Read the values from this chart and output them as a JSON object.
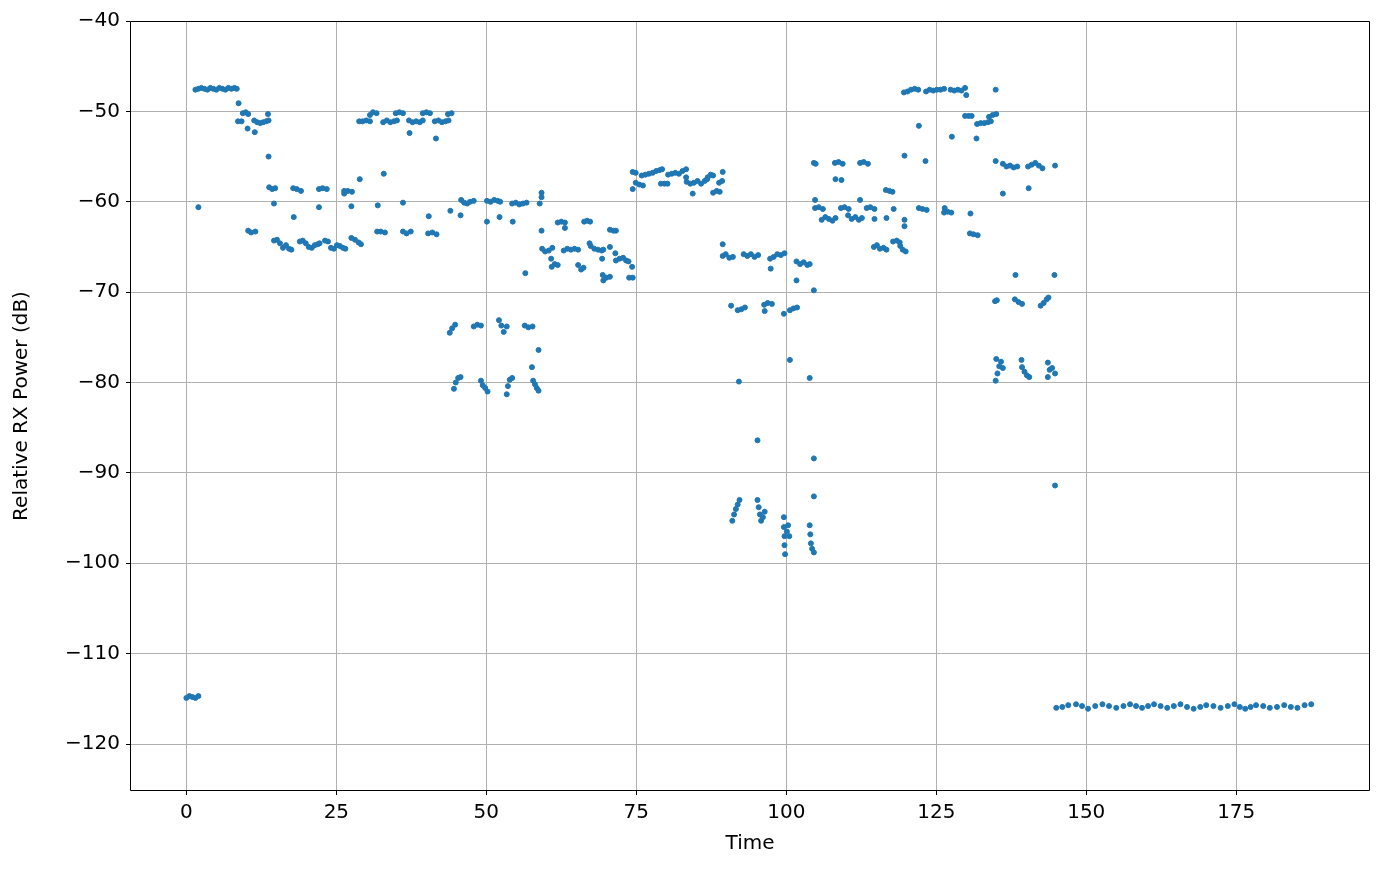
{
  "chart_data": {
    "type": "scatter",
    "xlabel": "Time",
    "ylabel": "Relative RX Power (dB)",
    "color": "#1f77b4",
    "marker": "circle",
    "grid": true,
    "xlim": [
      -9.4,
      197.3
    ],
    "ylim": [
      -125.2,
      -40
    ],
    "xticks": [
      0,
      25,
      50,
      75,
      100,
      125,
      150,
      175
    ],
    "yticks": [
      {
        "value": -120,
        "label": "−120"
      },
      {
        "value": -110,
        "label": "−110"
      },
      {
        "value": -100,
        "label": "−100"
      },
      {
        "value": -90,
        "label": "−90"
      },
      {
        "value": -80,
        "label": "−80"
      },
      {
        "value": -70,
        "label": "−70"
      },
      {
        "value": -60,
        "label": "−60"
      },
      {
        "value": -50,
        "label": "−50"
      },
      {
        "value": -40,
        "label": "−40"
      }
    ],
    "x": [
      0,
      0.5,
      1,
      1.5,
      2,
      2,
      1.5,
      2,
      2.5,
      3,
      3.5,
      4,
      4.5,
      5,
      5.5,
      6,
      6.5,
      7,
      7.5,
      8,
      8.4,
      8.7,
      8.6,
      9.2,
      9.4,
      9.9,
      10.3,
      10.2,
      11.4,
      11.3,
      11.8,
      12.3,
      12.8,
      13.3,
      13.7,
      13.6,
      13.7,
      13.8,
      14.3,
      14.8,
      14.6,
      10.3,
      10.8,
      11.5,
      14.6,
      15.1,
      15.6,
      16.1,
      16.6,
      17.1,
      17.5,
      17.9,
      17.8,
      18.4,
      19.1,
      18.9,
      19.4,
      19.9,
      20.4,
      20.9,
      21.4,
      21.9,
      22.2,
      22.1,
      22.1,
      22.7,
      23.4,
      23.1,
      23.6,
      24.1,
      24.6,
      25.1,
      25.6,
      26.1,
      26.5,
      26.3,
      26.3,
      26.9,
      27.6,
      27.5,
      27.5,
      28.1,
      28.7,
      29.1,
      28.9,
      28.8,
      29.4,
      30.0,
      30.6,
      30.6,
      31.1,
      31.7,
      31.9,
      31.8,
      32.4,
      33.1,
      32.9,
      32.8,
      33.4,
      34.0,
      34.6,
      35.1,
      34.9,
      35.5,
      36.1,
      36.1,
      36.1,
      36.7,
      37.4,
      37.2,
      37.1,
      37.7,
      38.3,
      38.9,
      39.4,
      39.4,
      40.0,
      40.6,
      40.4,
      40.3,
      41.0,
      41.7,
      41.6,
      41.4,
      42.0,
      42.6,
      43.2,
      43.7,
      43.6,
      44.2,
      44.0,
      45.7,
      45.8,
      46.3,
      46.8,
      47.3,
      47.9,
      50.1,
      50.7,
      51.3,
      51.9,
      52.3,
      50.1,
      52.2,
      54.4,
      54.3,
      54.9,
      55.5,
      56.1,
      56.7,
      56.5,
      43.9,
      44.3,
      44.8,
      47.9,
      48.5,
      49.1,
      52.1,
      52.5,
      52.9,
      53.4,
      56.4,
      57.0,
      57.7,
      58.7,
      57.6,
      44.6,
      44.9,
      45.3,
      45.7,
      49.1,
      49.4,
      49.8,
      50.2,
      53.4,
      53.6,
      53.9,
      54.3,
      57.8,
      58.1,
      58.4,
      58.7,
      59.2,
      59.2,
      58.9,
      59.2,
      59.3,
      59.8,
      60.4,
      61.0,
      60.8,
      60.9,
      61.4,
      61.9,
      61.9,
      62.5,
      63.1,
      63.1,
      62.9,
      63.5,
      64.1,
      64.7,
      65.3,
      65.3,
      65.8,
      66.2,
      66.3,
      66.8,
      67.3,
      67.2,
      67.4,
      68.0,
      68.6,
      69.2,
      69.5,
      69.3,
      69.4,
      69.5,
      70.0,
      70.6,
      70.6,
      70.6,
      71.2,
      71.6,
      71.5,
      71.6,
      72.2,
      72.8,
      73.3,
      73.7,
      74.3,
      73.8,
      74.4,
      74.4,
      74.4,
      74.9,
      74.9,
      75.5,
      76.1,
      75.9,
      76.5,
      77.1,
      77.7,
      78.3,
      78.9,
      79.3,
      79.1,
      79.7,
      80.2,
      80.3,
      80.9,
      81.5,
      82.1,
      82.7,
      83.3,
      83.3,
      83.4,
      84.0,
      84.6,
      85.2,
      85.8,
      86.4,
      86.8,
      84.4,
      86.9,
      87.4,
      87.8,
      87.8,
      88.4,
      88.9,
      88.8,
      89.3,
      89.4,
      89.4,
      89.4,
      89.9,
      90.5,
      91.1,
      90.8,
      91.9,
      92.5,
      93.1,
      92.9,
      93.5,
      94.1,
      94.7,
      95.3,
      92.1,
      96.3,
      96.9,
      97.6,
      96.4,
      97.3,
      97.9,
      98.5,
      99.1,
      99.7,
      97.4,
      99.6,
      100.6,
      100.6,
      101.2,
      101.8,
      101.7,
      101.7,
      102.3,
      102.9,
      103.5,
      103.9,
      103.9,
      104.6,
      104.6,
      104.9,
      104.8,
      104.8,
      105.4,
      106.1,
      105.9,
      106.5,
      107.1,
      107.7,
      108.2,
      108.2,
      109.2,
      108.1,
      108.7,
      109.4,
      109.1,
      109.7,
      110.4,
      110.3,
      110.9,
      111.5,
      112.1,
      112.6,
      112.3,
      112.3,
      112.9,
      113.6,
      113.4,
      114.0,
      114.7,
      114.7,
      116.7,
      114.6,
      115.1,
      115.6,
      116.2,
      116.7,
      116.6,
      117.2,
      117.7,
      117.9,
      117.8,
      118.4,
      118.9,
      119.0,
      119.4,
      119.9,
      119.7,
      119.7,
      119.7,
      119.6,
      120.2,
      120.8,
      121.4,
      122.0,
      122.1,
      123.2,
      122.1,
      122.7,
      123.4,
      123.3,
      123.9,
      124.5,
      125.1,
      125.7,
      126.3,
      126.4,
      126.3,
      126.9,
      127.5,
      127.4,
      128.0,
      128.6,
      129.2,
      129.8,
      130.0,
      134.9,
      129.8,
      130.4,
      130.9,
      131.8,
      132.4,
      133.0,
      133.6,
      134.1,
      133.8,
      134.4,
      135.0,
      127.6,
      131.7,
      134.9,
      136.1,
      136.7,
      137.3,
      137.9,
      138.5,
      140.3,
      140.9,
      141.5,
      142.1,
      142.7,
      144.8,
      136.1,
      140.4,
      130.7,
      130.6,
      131.2,
      131.9,
      138.2,
      144.7,
      134.8,
      135.1,
      138.1,
      138.7,
      139.3,
      142.4,
      142.9,
      143.4,
      143.7,
      134.9,
      135.2,
      135.5,
      135.8,
      136.1,
      135.0,
      139.2,
      139.3,
      139.7,
      140.1,
      140.5,
      143.6,
      143.6,
      143.9,
      144.3,
      144.8,
      144.8,
      104.6,
      95.2,
      104.6,
      91.0,
      91.3,
      91.6,
      91.9,
      92.2,
      95.2,
      95.4,
      95.6,
      95.8,
      96.1,
      96.4,
      99.6,
      99.6,
      99.7,
      99.7,
      99.8,
      100.1,
      100.3,
      100.5,
      103.9,
      104.0,
      104.1,
      104.3,
      104.6,
      145.0,
      146.0,
      147.0,
      148.3,
      149.3,
      150.3,
      151.5,
      152.7,
      153.8,
      155.0,
      156.2,
      157.3,
      158.3,
      159.3,
      160.3,
      161.3,
      162.4,
      163.5,
      164.6,
      165.7,
      166.8,
      167.9,
      169.0,
      170.0,
      171.2,
      172.4,
      173.6,
      174.7,
      175.6,
      176.5,
      177.4,
      178.3,
      179.5,
      180.6,
      181.8,
      183.0,
      184.1,
      185.2,
      186.4,
      187.5
    ],
    "values": [
      -114.9,
      -114.7,
      -114.8,
      -114.9,
      -114.7,
      -60.6,
      -47.6,
      -47.5,
      -47.4,
      -47.5,
      -47.6,
      -47.4,
      -47.5,
      -47.6,
      -47.4,
      -47.5,
      -47.6,
      -47.4,
      -47.5,
      -47.4,
      -47.5,
      -49.1,
      -51.1,
      -51.1,
      -50.2,
      -50.1,
      -50.3,
      -51.9,
      -52.3,
      -51.0,
      -51.2,
      -51.3,
      -51.2,
      -51.1,
      -51.0,
      -50.3,
      -55.0,
      -58.4,
      -58.6,
      -58.5,
      -60.2,
      -63.2,
      -63.4,
      -63.3,
      -64.3,
      -64.2,
      -64.6,
      -65.1,
      -64.8,
      -65.2,
      -65.3,
      -61.7,
      -58.5,
      -58.6,
      -58.8,
      -64.4,
      -64.3,
      -64.6,
      -65.0,
      -65.1,
      -64.8,
      -64.7,
      -64.6,
      -60.6,
      -58.6,
      -58.5,
      -58.6,
      -64.3,
      -64.4,
      -65.1,
      -65.2,
      -64.8,
      -64.9,
      -65.1,
      -65.2,
      -59.1,
      -58.8,
      -58.8,
      -58.9,
      -60.5,
      -64.0,
      -64.2,
      -64.5,
      -64.7,
      -57.5,
      -51.1,
      -51.1,
      -51.0,
      -51.1,
      -50.4,
      -50.1,
      -50.2,
      -60.4,
      -63.3,
      -63.3,
      -63.4,
      -56.9,
      -51.2,
      -51.0,
      -51.2,
      -51.1,
      -51.0,
      -50.2,
      -50.1,
      -50.2,
      -60.1,
      -63.3,
      -63.5,
      -63.3,
      -52.4,
      -51.0,
      -51.2,
      -51.1,
      -51.2,
      -51.0,
      -50.2,
      -50.1,
      -50.2,
      -61.6,
      -63.5,
      -63.4,
      -63.6,
      -53.0,
      -51.1,
      -51.0,
      -51.2,
      -51.1,
      -51.0,
      -50.3,
      -50.2,
      -61.0,
      -61.5,
      -59.8,
      -60.1,
      -60.2,
      -60.0,
      -59.9,
      -59.9,
      -60.0,
      -59.8,
      -59.9,
      -60.0,
      -62.2,
      -61.7,
      -62.2,
      -60.2,
      -60.1,
      -60.3,
      -60.2,
      -60.1,
      -67.9,
      -74.5,
      -74.0,
      -73.6,
      -73.8,
      -73.6,
      -73.7,
      -73.1,
      -73.7,
      -74.4,
      -73.8,
      -73.7,
      -73.9,
      -73.8,
      -76.4,
      -78.3,
      -80.7,
      -80.0,
      -79.5,
      -79.4,
      -79.8,
      -80.3,
      -80.6,
      -81.0,
      -81.3,
      -80.4,
      -79.7,
      -79.5,
      -79.8,
      -80.2,
      -80.6,
      -80.9,
      -59.0,
      -59.5,
      -60.2,
      -63.2,
      -65.2,
      -65.5,
      -65.4,
      -65.1,
      -66.3,
      -67.2,
      -66.9,
      -67.0,
      -62.3,
      -62.2,
      -62.3,
      -62.9,
      -65.4,
      -65.2,
      -65.3,
      -65.2,
      -65.3,
      -67.0,
      -67.5,
      -67.3,
      -62.2,
      -62.1,
      -62.2,
      -64.6,
      -64.9,
      -65.2,
      -65.3,
      -65.4,
      -65.3,
      -66.3,
      -68.1,
      -68.7,
      -68.4,
      -68.3,
      -65.0,
      -63.1,
      -63.2,
      -63.2,
      -65.7,
      -66.5,
      -66.3,
      -66.2,
      -66.5,
      -66.6,
      -67.2,
      -68.4,
      -68.4,
      -58.6,
      -56.7,
      -56.8,
      -57.9,
      -58.1,
      -58.2,
      -57.1,
      -57.0,
      -56.9,
      -56.8,
      -56.6,
      -56.5,
      -56.4,
      -58.0,
      -58.0,
      -58.0,
      -57.0,
      -56.9,
      -56.8,
      -56.9,
      -56.6,
      -56.4,
      -57.3,
      -57.8,
      -58.0,
      -57.9,
      -57.7,
      -58.0,
      -57.7,
      -57.5,
      -59.1,
      -57.3,
      -57.0,
      -57.1,
      -59.0,
      -58.8,
      -58.9,
      -57.9,
      -57.7,
      -56.7,
      -64.7,
      -66.0,
      -65.8,
      -66.2,
      -66.1,
      -71.5,
      -72.0,
      -71.9,
      -71.7,
      -65.8,
      -66.0,
      -65.8,
      -66.1,
      -65.9,
      -79.9,
      -71.4,
      -71.2,
      -71.3,
      -72.1,
      -66.3,
      -66.1,
      -65.8,
      -65.9,
      -65.7,
      -67.4,
      -72.4,
      -77.5,
      -72.0,
      -71.8,
      -71.7,
      -68.7,
      -66.6,
      -66.9,
      -66.7,
      -67.0,
      -66.9,
      -79.5,
      -69.8,
      -55.7,
      -55.8,
      -59.8,
      -60.7,
      -60.6,
      -60.8,
      -62.0,
      -61.7,
      -61.9,
      -62.1,
      -61.8,
      -57.5,
      -57.6,
      -55.7,
      -55.6,
      -55.8,
      -60.7,
      -60.6,
      -60.8,
      -61.5,
      -61.9,
      -61.7,
      -62.0,
      -61.8,
      -59.8,
      -55.7,
      -55.6,
      -55.8,
      -60.7,
      -60.6,
      -60.8,
      -61.9,
      -61.8,
      -65.0,
      -64.8,
      -65.2,
      -65.1,
      -65.3,
      -58.7,
      -58.8,
      -58.9,
      -60.8,
      -64.4,
      -64.3,
      -64.5,
      -64.9,
      -65.3,
      -65.5,
      -62.0,
      -62.7,
      -54.9,
      -47.9,
      -47.8,
      -47.6,
      -47.5,
      -47.6,
      -51.6,
      -55.5,
      -60.7,
      -60.8,
      -60.9,
      -47.8,
      -47.6,
      -47.7,
      -47.6,
      -47.6,
      -47.5,
      -60.7,
      -61.2,
      -61.1,
      -61.2,
      -47.6,
      -47.7,
      -47.6,
      -47.7,
      -47.4,
      -48.2,
      -47.6,
      -50.5,
      -50.5,
      -50.5,
      -51.4,
      -51.3,
      -51.3,
      -51.2,
      -51.1,
      -50.6,
      -50.4,
      -50.3,
      -52.8,
      -53.0,
      -55.5,
      -55.8,
      -56.1,
      -56.0,
      -56.2,
      -56.1,
      -56.1,
      -55.9,
      -55.7,
      -56.0,
      -56.3,
      -56.0,
      -59.1,
      -58.5,
      -61.3,
      -63.5,
      -63.6,
      -63.7,
      -68.1,
      -68.1,
      -71.0,
      -70.9,
      -70.8,
      -71.1,
      -71.3,
      -71.5,
      -71.2,
      -70.8,
      -70.6,
      -79.8,
      -79.0,
      -78.2,
      -77.7,
      -78.4,
      -77.4,
      -77.5,
      -78.3,
      -78.8,
      -79.2,
      -79.4,
      -77.8,
      -79.4,
      -78.6,
      -78.4,
      -79.0,
      -91.4,
      -88.4,
      -86.4,
      -92.6,
      -95.3,
      -94.6,
      -94.0,
      -93.5,
      -93.0,
      -93.0,
      -93.8,
      -94.6,
      -95.3,
      -94.9,
      -94.3,
      -94.9,
      -96.0,
      -97.0,
      -98.0,
      -99.0,
      -96.5,
      -95.8,
      -97.0,
      -95.8,
      -96.8,
      -97.8,
      -98.4,
      -98.8,
      -116.0,
      -115.9,
      -115.7,
      -115.6,
      -115.8,
      -116.1,
      -115.8,
      -115.6,
      -115.8,
      -116.0,
      -115.8,
      -115.6,
      -115.8,
      -116.0,
      -115.8,
      -115.6,
      -115.8,
      -116.0,
      -115.8,
      -115.6,
      -115.9,
      -116.1,
      -115.9,
      -115.7,
      -115.8,
      -116.0,
      -115.8,
      -115.6,
      -115.9,
      -116.1,
      -115.9,
      -115.7,
      -115.8,
      -116.0,
      -115.9,
      -115.7,
      -115.9,
      -116.0,
      -115.7,
      -115.6
    ]
  }
}
